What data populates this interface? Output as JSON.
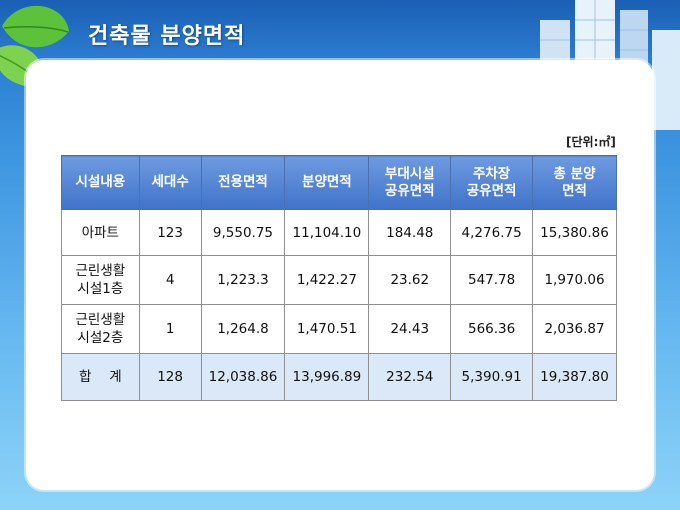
{
  "title": "건축물 분양면적",
  "unit_label": "[단위:㎡]",
  "table": {
    "headers": [
      [
        "시설내용"
      ],
      [
        "세대수"
      ],
      [
        "전용면적"
      ],
      [
        "분양면적"
      ],
      [
        "부대시설",
        "공유면적"
      ],
      [
        "주차장",
        "공유면적"
      ],
      [
        "총 분양",
        "면적"
      ]
    ],
    "rows": [
      {
        "name": [
          "아파트"
        ],
        "households": "123",
        "exclusive": "9,550.75",
        "sale": "11,104.10",
        "facility_shared": "184.48",
        "parking_shared": "4,276.75",
        "total": "15,380.86"
      },
      {
        "name": [
          "근린생활",
          "시설1층"
        ],
        "households": "4",
        "exclusive": "1,223.3",
        "sale": "1,422.27",
        "facility_shared": "23.62",
        "parking_shared": "547.78",
        "total": "1,970.06"
      },
      {
        "name": [
          "근린생활",
          "시설2층"
        ],
        "households": "1",
        "exclusive": "1,264.8",
        "sale": "1,470.51",
        "facility_shared": "24.43",
        "parking_shared": "566.36",
        "total": "2,036.87"
      }
    ],
    "total_row": {
      "name": "합　 계",
      "households": "128",
      "exclusive": "12,038.86",
      "sale": "13,996.89",
      "facility_shared": "232.54",
      "parking_shared": "5,390.91",
      "total": "19,387.80"
    }
  },
  "colors": {
    "header_bg": "#4a7fd0",
    "total_row_bg": "#dbe8f7",
    "sky": "#3d95e0"
  }
}
